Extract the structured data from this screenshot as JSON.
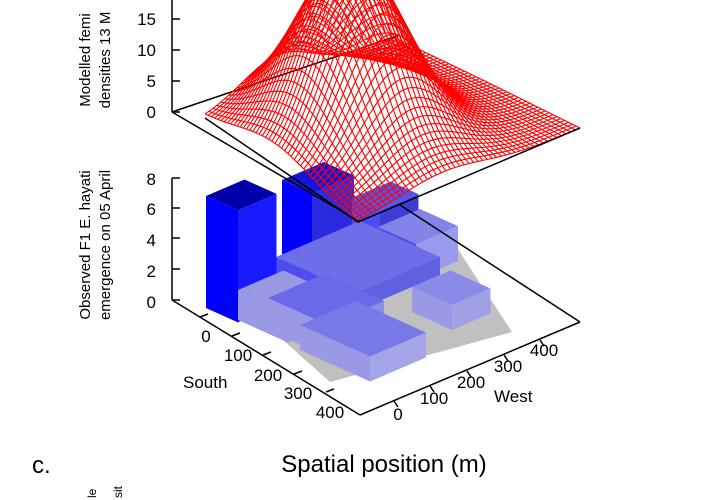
{
  "figure": {
    "panel_label": "c.",
    "x_title": "Spatial position (m)",
    "next_panel_ylabel_fragment": [
      "le",
      "sit"
    ]
  },
  "chart_data": [
    {
      "type": "surface",
      "ylabel_line1": "Modelled femi",
      "ylabel_line2": "densities 13 M",
      "z_ticks": [
        "0",
        "5",
        "10",
        "15"
      ],
      "color": "#ff0000"
    },
    {
      "type": "bar3d",
      "ylabel_line1": "Observed F1 E. hayati",
      "ylabel_line2": "emergence on 05 April",
      "z_ticks": [
        "0",
        "2",
        "4",
        "6",
        "8"
      ],
      "south_label": "South",
      "west_label": "West",
      "south_ticks": [
        "0",
        "100",
        "200",
        "300",
        "400"
      ],
      "west_ticks": [
        "0",
        "100",
        "200",
        "300",
        "400"
      ],
      "bar_colors": [
        "#0000ff",
        "#4c4cf0",
        "#9999e6"
      ],
      "base_color": "#c0c0c0"
    }
  ]
}
